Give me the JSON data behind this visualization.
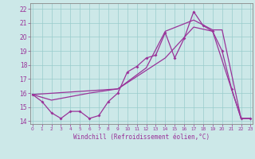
{
  "bg_color": "#cce8e8",
  "grid_color": "#99cccc",
  "line_color": "#993399",
  "ylim": [
    13.8,
    22.4
  ],
  "xlim": [
    -0.2,
    23.2
  ],
  "yticks": [
    14,
    15,
    16,
    17,
    18,
    19,
    20,
    21,
    22
  ],
  "xticks": [
    0,
    1,
    2,
    3,
    4,
    5,
    6,
    7,
    8,
    9,
    10,
    11,
    12,
    13,
    14,
    15,
    16,
    17,
    18,
    19,
    20,
    21,
    22,
    23
  ],
  "xlabel": "Windchill (Refroidissement éolien,°C)",
  "jagged_x": [
    0,
    1,
    2,
    3,
    4,
    5,
    6,
    7,
    8,
    9,
    10,
    11,
    12,
    13,
    14,
    15,
    16,
    17,
    18,
    19,
    20,
    21,
    22,
    23
  ],
  "jagged_y": [
    15.9,
    15.4,
    14.6,
    14.2,
    14.7,
    14.7,
    14.2,
    14.4,
    15.4,
    16.0,
    17.5,
    17.9,
    18.5,
    18.7,
    20.3,
    18.5,
    19.9,
    21.8,
    20.8,
    20.4,
    19.0,
    16.3,
    14.2,
    14.2
  ],
  "trend_smooth_x": [
    0,
    2,
    6,
    9,
    12,
    14,
    17,
    19,
    20,
    22,
    23
  ],
  "trend_smooth_y": [
    15.9,
    15.5,
    16.0,
    16.3,
    17.8,
    20.4,
    21.2,
    20.5,
    20.5,
    14.2,
    14.2
  ],
  "trend_line_x": [
    0,
    9,
    14,
    17,
    19,
    22,
    23
  ],
  "trend_line_y": [
    15.9,
    16.3,
    18.5,
    20.7,
    20.4,
    14.2,
    14.2
  ]
}
